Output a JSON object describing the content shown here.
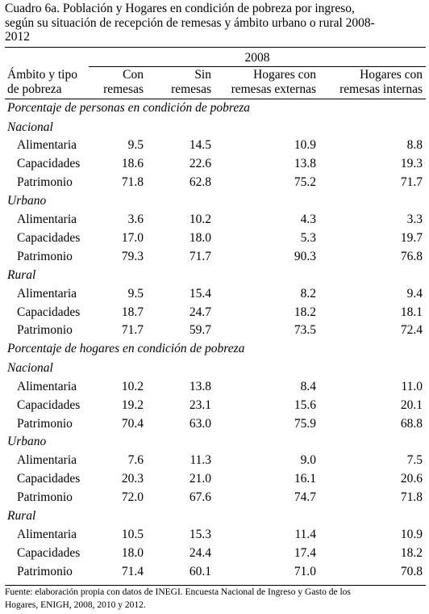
{
  "caption": {
    "line1": "Cuadro 6a. Población y Hogares en condición de pobreza por ingreso,",
    "line2": "según su situación de recepción de remesas y ámbito urbano o rural 2008-",
    "line3": "2012"
  },
  "header": {
    "year": "2008",
    "row_header_line1": "Ámbito y tipo",
    "row_header_line2": "de pobreza",
    "columns": [
      {
        "line1": "Con",
        "line2": "remesas"
      },
      {
        "line1": "Sin",
        "line2": "remesas"
      },
      {
        "line1": "Hogares con",
        "line2": "remesas externas"
      },
      {
        "line1": "Hogares con",
        "line2": "remesas internas"
      }
    ]
  },
  "sections": [
    {
      "title": "Porcentaje de personas en condición de pobreza",
      "groups": [
        {
          "name": "Nacional",
          "rows": [
            {
              "label": "Alimentaria",
              "values": [
                "9.5",
                "14.5",
                "10.9",
                "8.8"
              ]
            },
            {
              "label": "Capacidades",
              "values": [
                "18.6",
                "22.6",
                "13.8",
                "19.3"
              ]
            },
            {
              "label": "Patrimonio",
              "values": [
                "71.8",
                "62.8",
                "75.2",
                "71.7"
              ]
            }
          ]
        },
        {
          "name": "Urbano",
          "rows": [
            {
              "label": "Alimentaria",
              "values": [
                "3.6",
                "10.2",
                "4.3",
                "3.3"
              ]
            },
            {
              "label": "Capacidades",
              "values": [
                "17.0",
                "18.0",
                "5.3",
                "19.7"
              ]
            },
            {
              "label": "Patrimonio",
              "values": [
                "79.3",
                "71.7",
                "90.3",
                "76.8"
              ]
            }
          ]
        },
        {
          "name": "Rural",
          "rows": [
            {
              "label": "Alimentaria",
              "values": [
                "9.5",
                "15.4",
                "8.2",
                "9.4"
              ]
            },
            {
              "label": "Capacidades",
              "values": [
                "18.7",
                "24.7",
                "18.2",
                "18.1"
              ]
            },
            {
              "label": "Patrimonio",
              "values": [
                "71.7",
                "59.7",
                "73.5",
                "72.4"
              ]
            }
          ]
        }
      ]
    },
    {
      "title": "Porcentaje de hogares en condición de pobreza",
      "groups": [
        {
          "name": "Nacional",
          "rows": [
            {
              "label": "Alimentaria",
              "values": [
                "10.2",
                "13.8",
                "8.4",
                "11.0"
              ]
            },
            {
              "label": "Capacidades",
              "values": [
                "19.2",
                "23.1",
                "15.6",
                "20.1"
              ]
            },
            {
              "label": "Patrimonio",
              "values": [
                "70.4",
                "63.0",
                "75.9",
                "68.8"
              ]
            }
          ]
        },
        {
          "name": "Urbano",
          "rows": [
            {
              "label": "Alimentaria",
              "values": [
                "7.6",
                "11.3",
                "9.0",
                "7.5"
              ]
            },
            {
              "label": "Capacidades",
              "values": [
                "20.3",
                "21.0",
                "16.1",
                "20.6"
              ]
            },
            {
              "label": "Patrimonio",
              "values": [
                "72.0",
                "67.6",
                "74.7",
                "71.8"
              ]
            }
          ]
        },
        {
          "name": "Rural",
          "rows": [
            {
              "label": "Alimentaria",
              "values": [
                "10.5",
                "15.3",
                "11.4",
                "10.9"
              ]
            },
            {
              "label": "Capacidades",
              "values": [
                "18.0",
                "24.4",
                "17.4",
                "18.2"
              ]
            },
            {
              "label": "Patrimonio",
              "values": [
                "71.4",
                "60.1",
                "71.0",
                "70.8"
              ]
            }
          ]
        }
      ]
    }
  ],
  "source": {
    "line1": "Fuente: elaboración propia con datos de INEGI. Encuesta Nacional de Ingreso y Gasto de los",
    "line2": "Hogares, ENIGH, 2008, 2010 y 2012."
  }
}
